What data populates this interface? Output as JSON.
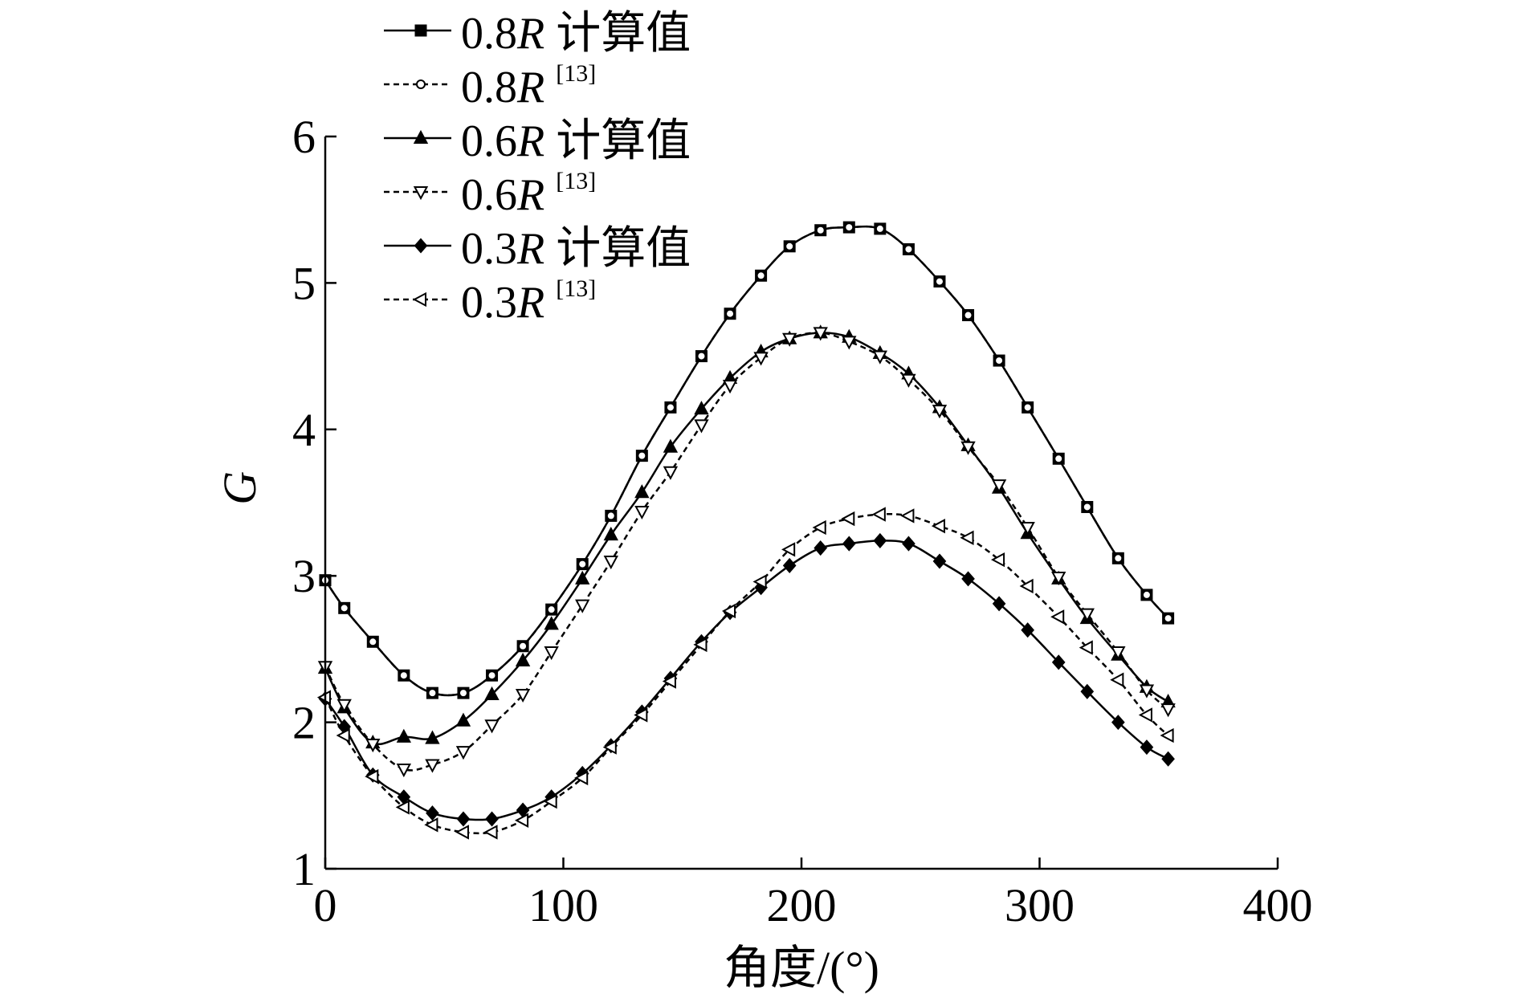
{
  "chart_data": {
    "type": "line",
    "xlabel": "角度/(°)",
    "ylabel": "G",
    "xlim": [
      0,
      400
    ],
    "ylim": [
      1,
      6
    ],
    "xticks": [
      0,
      100,
      200,
      300,
      400
    ],
    "yticks": [
      1,
      2,
      3,
      4,
      5,
      6
    ],
    "x_tick_labels": [
      "0",
      "100",
      "200",
      "300",
      "400"
    ],
    "y_tick_labels": [
      "1",
      "2",
      "3",
      "4",
      "5",
      "6"
    ],
    "grid": false,
    "legend_position": "top-left",
    "series": [
      {
        "name": "0.8R 计算值",
        "label_main": "0.8",
        "label_var": "R",
        "label_suffix": " 计算值",
        "label_ref": "",
        "style": "solid",
        "marker": "square-filled",
        "x": [
          0,
          8,
          20,
          33,
          45,
          58,
          70,
          83,
          95,
          108,
          120,
          133,
          145,
          158,
          170,
          183,
          195,
          208,
          220,
          233,
          245,
          258,
          270,
          283,
          295,
          308,
          320,
          333,
          345,
          354
        ],
        "y": [
          2.97,
          2.78,
          2.55,
          2.32,
          2.2,
          2.2,
          2.32,
          2.52,
          2.77,
          3.08,
          3.41,
          3.82,
          4.15,
          4.5,
          4.79,
          5.05,
          5.25,
          5.36,
          5.38,
          5.37,
          5.23,
          5.01,
          4.78,
          4.47,
          4.15,
          3.8,
          3.47,
          3.12,
          2.87,
          2.71
        ]
      },
      {
        "name": "0.8R [13]",
        "label_main": "0.8",
        "label_var": "R",
        "label_suffix": "",
        "label_ref": "[13]",
        "style": "dashed",
        "marker": "circle-open",
        "x": [
          0,
          8,
          20,
          33,
          45,
          58,
          70,
          83,
          95,
          108,
          120,
          133,
          145,
          158,
          170,
          183,
          195,
          208,
          220,
          233,
          245,
          258,
          270,
          283,
          295,
          308,
          320,
          333,
          345,
          354
        ],
        "y": [
          2.97,
          2.78,
          2.55,
          2.32,
          2.2,
          2.2,
          2.32,
          2.52,
          2.77,
          3.08,
          3.41,
          3.82,
          4.15,
          4.5,
          4.79,
          5.05,
          5.25,
          5.36,
          5.38,
          5.37,
          5.23,
          5.01,
          4.78,
          4.47,
          4.15,
          3.8,
          3.47,
          3.12,
          2.87,
          2.71
        ]
      },
      {
        "name": "0.6R 计算值",
        "label_main": "0.6",
        "label_var": "R",
        "label_suffix": " 计算值",
        "label_ref": "",
        "style": "solid",
        "marker": "triangle-up-filled",
        "x": [
          0,
          8,
          20,
          33,
          45,
          58,
          70,
          83,
          95,
          108,
          120,
          133,
          145,
          158,
          170,
          183,
          195,
          208,
          220,
          233,
          245,
          258,
          270,
          283,
          295,
          308,
          320,
          333,
          345,
          354
        ],
        "y": [
          2.37,
          2.1,
          1.86,
          1.9,
          1.89,
          2.01,
          2.19,
          2.42,
          2.67,
          2.98,
          3.28,
          3.57,
          3.88,
          4.14,
          4.35,
          4.53,
          4.62,
          4.66,
          4.63,
          4.52,
          4.38,
          4.15,
          3.89,
          3.6,
          3.29,
          2.98,
          2.71,
          2.46,
          2.24,
          2.14
        ]
      },
      {
        "name": "0.6R [13]",
        "label_main": "0.6",
        "label_var": "R",
        "label_suffix": "",
        "label_ref": "[13]",
        "style": "dashed",
        "marker": "triangle-down-open",
        "x": [
          0,
          8,
          20,
          33,
          45,
          58,
          70,
          83,
          95,
          108,
          120,
          133,
          145,
          158,
          170,
          183,
          195,
          208,
          220,
          233,
          245,
          258,
          270,
          283,
          295,
          308,
          320,
          333,
          345,
          354
        ],
        "y": [
          2.38,
          2.12,
          1.85,
          1.68,
          1.71,
          1.8,
          1.98,
          2.19,
          2.48,
          2.8,
          3.1,
          3.44,
          3.71,
          4.03,
          4.3,
          4.49,
          4.62,
          4.66,
          4.6,
          4.5,
          4.34,
          4.13,
          3.88,
          3.62,
          3.33,
          2.99,
          2.74,
          2.48,
          2.22,
          2.09
        ]
      },
      {
        "name": "0.3R 计算值",
        "label_main": "0.3",
        "label_var": "R",
        "label_suffix": " 计算值",
        "label_ref": "",
        "style": "solid",
        "marker": "diamond-filled",
        "x": [
          0,
          8,
          20,
          33,
          45,
          58,
          70,
          83,
          95,
          108,
          120,
          133,
          145,
          158,
          170,
          183,
          195,
          208,
          220,
          233,
          245,
          258,
          270,
          283,
          295,
          308,
          320,
          333,
          345,
          354
        ],
        "y": [
          2.16,
          1.97,
          1.64,
          1.49,
          1.38,
          1.34,
          1.34,
          1.4,
          1.49,
          1.65,
          1.84,
          2.07,
          2.3,
          2.55,
          2.75,
          2.92,
          3.07,
          3.19,
          3.22,
          3.24,
          3.22,
          3.1,
          2.98,
          2.81,
          2.63,
          2.41,
          2.21,
          2.0,
          1.83,
          1.75
        ]
      },
      {
        "name": "0.3R [13]",
        "label_main": "0.3",
        "label_var": "R",
        "label_suffix": "",
        "label_ref": "[13]",
        "style": "dashed",
        "marker": "triangle-left-open",
        "x": [
          0,
          8,
          20,
          33,
          45,
          58,
          70,
          83,
          95,
          108,
          120,
          133,
          145,
          158,
          170,
          183,
          195,
          208,
          220,
          233,
          245,
          258,
          270,
          283,
          295,
          308,
          320,
          333,
          345,
          354
        ],
        "y": [
          2.17,
          1.91,
          1.63,
          1.42,
          1.3,
          1.25,
          1.25,
          1.33,
          1.46,
          1.62,
          1.83,
          2.05,
          2.28,
          2.53,
          2.76,
          2.96,
          3.18,
          3.33,
          3.39,
          3.42,
          3.41,
          3.34,
          3.26,
          3.11,
          2.93,
          2.72,
          2.51,
          2.29,
          2.05,
          1.91
        ]
      }
    ]
  }
}
